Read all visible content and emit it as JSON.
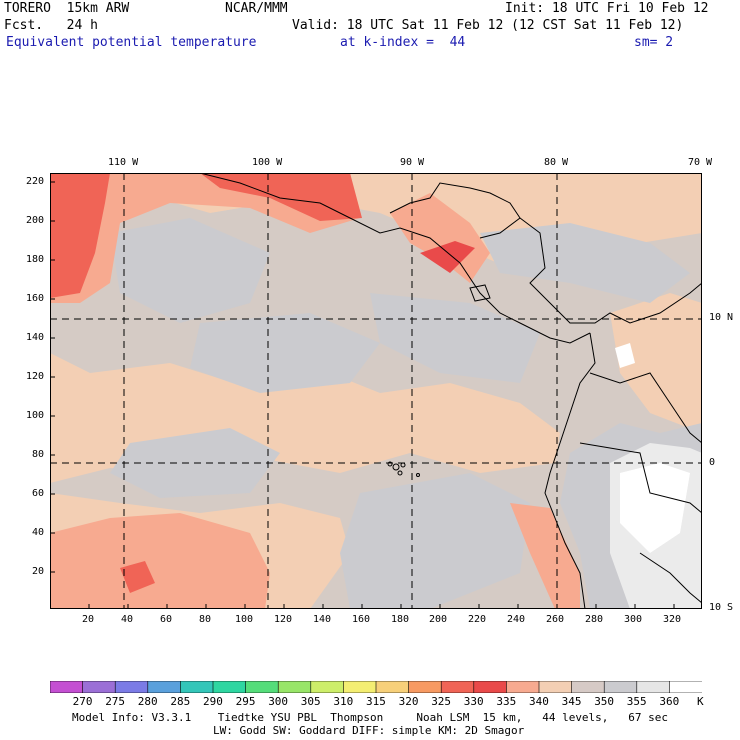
{
  "header": {
    "model": "TORERO  15km ARW",
    "org": "NCAR/MMM",
    "init": "Init: 18 UTC Fri 10 Feb 12",
    "fcst": "Fcst.   24 h",
    "valid": "Valid: 18 UTC Sat 11 Feb 12 (12 CST Sat 11 Feb 12)",
    "field": "Equivalent potential temperature",
    "level": "at k-index =  44",
    "smooth": "sm= 2"
  },
  "axes": {
    "top_lon": [
      "110 W",
      "100 W",
      "90 W",
      "80 W",
      "70 W"
    ],
    "left_y": [
      "220",
      "200",
      "180",
      "160",
      "140",
      "120",
      "100",
      "80",
      "60",
      "40",
      "20"
    ],
    "bottom_x": [
      "20",
      "40",
      "60",
      "80",
      "100",
      "120",
      "140",
      "160",
      "180",
      "200",
      "220",
      "240",
      "260",
      "280",
      "300",
      "320"
    ],
    "right_lat": [
      "10 N",
      "0",
      "10 S"
    ]
  },
  "colorbar": {
    "labels": [
      "270",
      "275",
      "280",
      "285",
      "290",
      "295",
      "300",
      "305",
      "310",
      "315",
      "320",
      "325",
      "330",
      "335",
      "340",
      "345",
      "350",
      "355",
      "360"
    ],
    "unit": "K",
    "colors": [
      "#c44fd2",
      "#9b6fd6",
      "#7b7be6",
      "#5aa0dc",
      "#34c6b9",
      "#2ed6a1",
      "#55dd7a",
      "#98e568",
      "#cdee6a",
      "#f4ee72",
      "#f7d07a",
      "#f79a62",
      "#f06456",
      "#e94a4a",
      "#f7aa90",
      "#f3cfb4",
      "#d6cac6",
      "#cbcbcf",
      "#e6e6e6",
      "#ffffff"
    ]
  },
  "map": {
    "colors": {
      "white": "#ffffff",
      "light_gray": "#ebebeb",
      "gray": "#cbcbcf",
      "tan_gray": "#d5cbc5",
      "peach": "#f3cfb4",
      "salmon": "#f7aa90",
      "red": "#f06456",
      "dark_red": "#e94a4a"
    }
  },
  "footer": {
    "line1": "Model Info: V3.3.1    Tiedtke YSU PBL  Thompson     Noah LSM  15 km,   44 levels,   67 sec",
    "line2": "LW: Godd SW: Goddard DIFF: simple KM: 2D Smagor"
  }
}
